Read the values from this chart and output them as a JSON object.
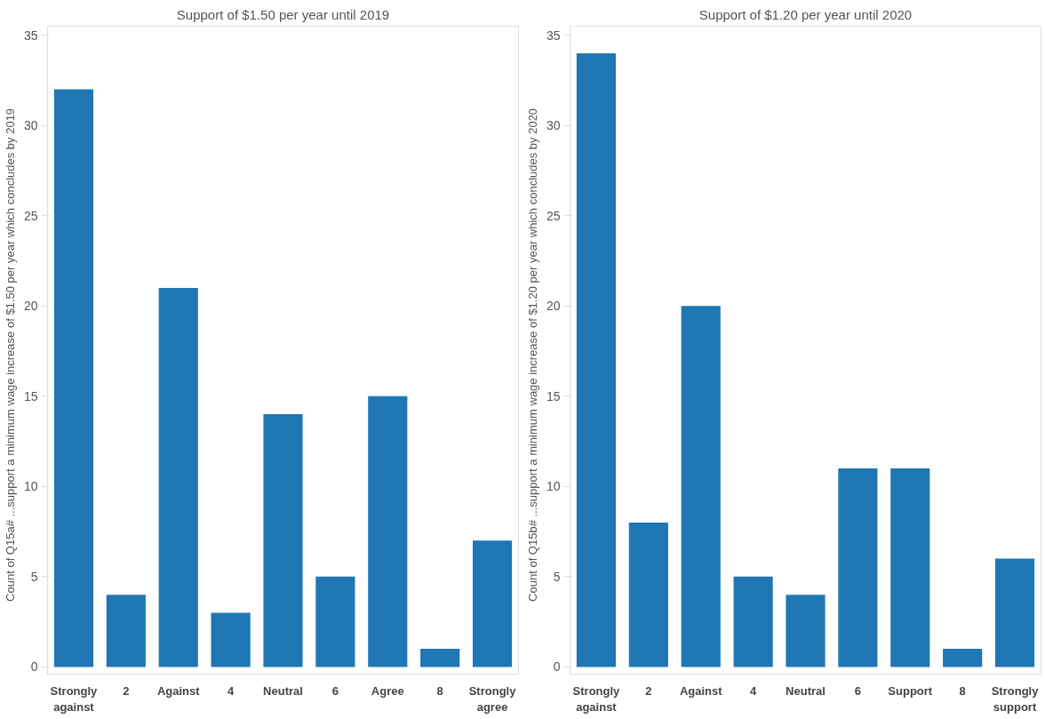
{
  "chart_data": [
    {
      "type": "bar",
      "title": "Support of $1.50 per year until 2019",
      "ylabel": "Count of Q15a#    ...support a minimum wage increase of $1.50 per year which concludes by 2019",
      "categories": [
        "Strongly against",
        "2",
        "Against",
        "4",
        "Neutral",
        "6",
        "Agree",
        "8",
        "Strongly agree"
      ],
      "values": [
        32,
        4,
        21,
        3,
        14,
        5,
        15,
        1,
        7
      ],
      "color": "#1f77b4",
      "ylim": [
        -0.4,
        35.5
      ],
      "yticks": [
        0,
        5,
        10,
        15,
        20,
        25,
        30,
        35
      ],
      "grid": false
    },
    {
      "type": "bar",
      "title": "Support of $1.20 per year until 2020",
      "ylabel": "Count of Q15b#    ...support a minimum wage increase of $1.20 per year which concludes by 2020",
      "categories": [
        "Strongly against",
        "2",
        "Against",
        "4",
        "Neutral",
        "6",
        "Support",
        "8",
        "Strongly support"
      ],
      "values": [
        34,
        8,
        20,
        5,
        4,
        11,
        11,
        1,
        6
      ],
      "color": "#1f77b4",
      "ylim": [
        -0.4,
        35.5
      ],
      "yticks": [
        0,
        5,
        10,
        15,
        20,
        25,
        30,
        35
      ],
      "grid": false
    }
  ]
}
